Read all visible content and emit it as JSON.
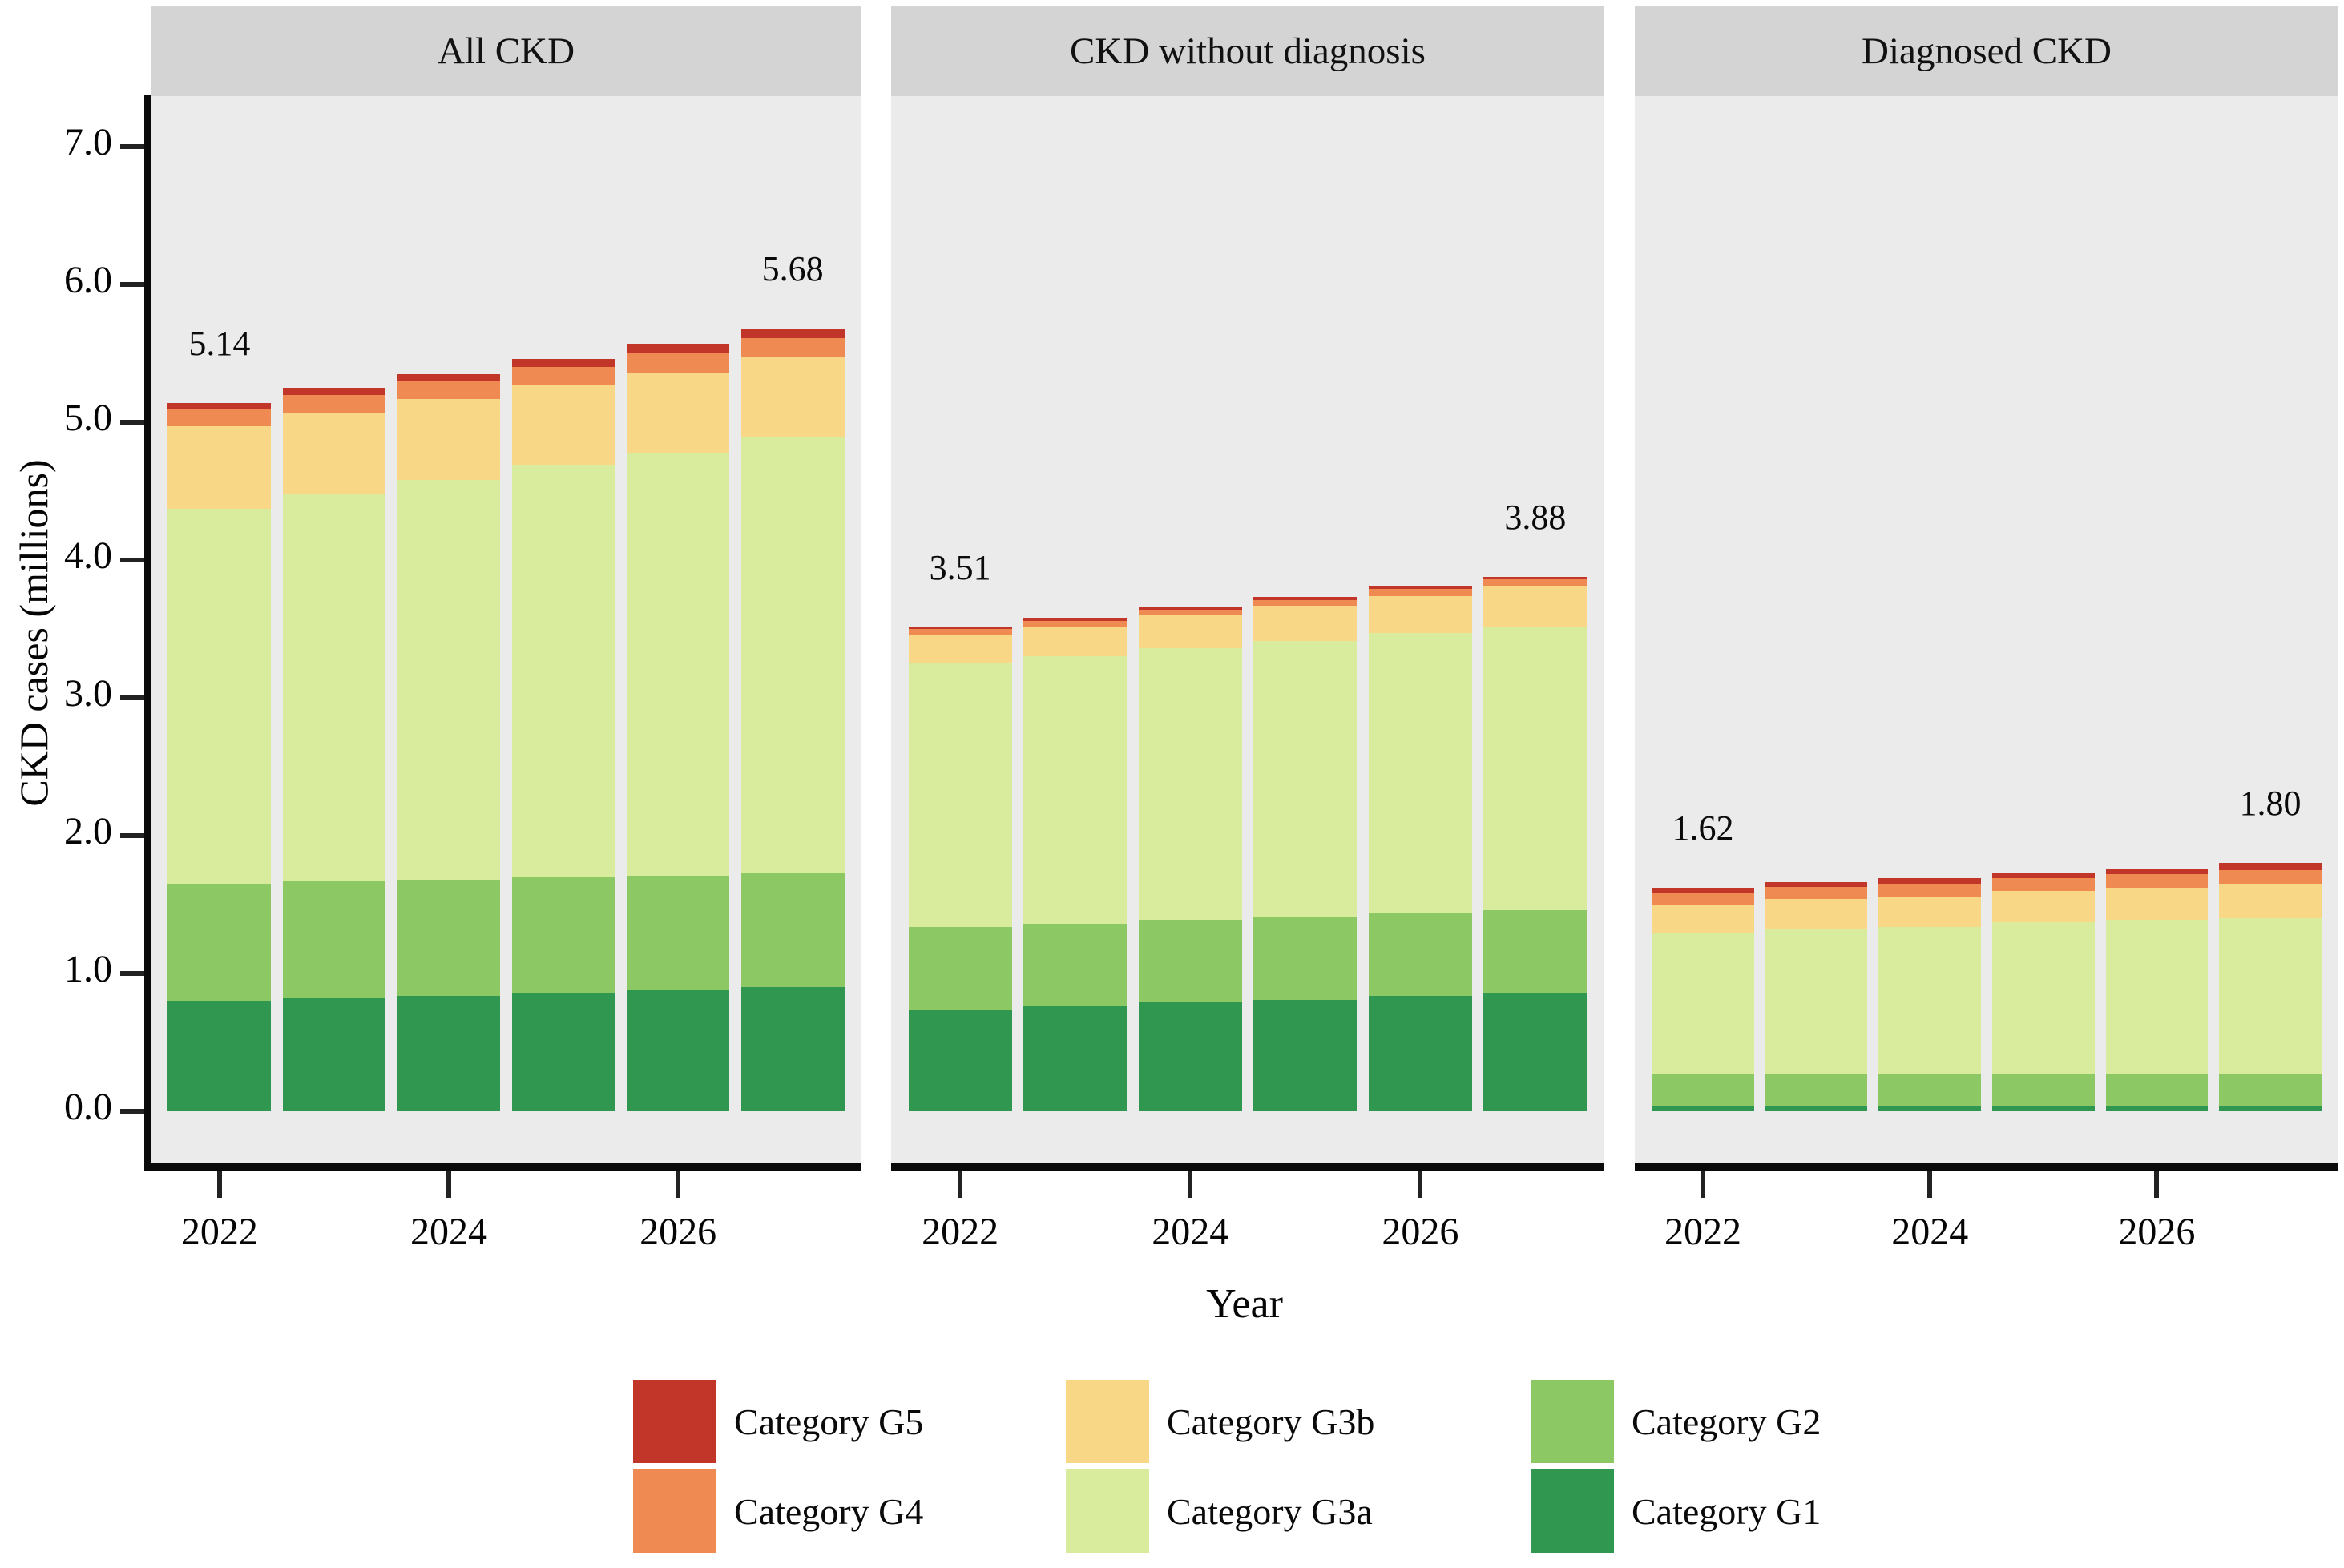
{
  "figure": {
    "y_axis": {
      "title": "CKD cases (millions)",
      "tick_labels": [
        "0.0",
        "1.0",
        "2.0",
        "3.0",
        "4.0",
        "5.0",
        "6.0",
        "7.0"
      ]
    },
    "x_axis": {
      "title": "Year",
      "tick_labels": [
        "2022",
        "2024",
        "2026"
      ]
    },
    "colors": {
      "panel_header_bg": "#d4d4d4",
      "plot_bg": "#ebebeb",
      "axis": "#0a0a0a"
    },
    "legend": {
      "columns": [
        [
          {
            "label": "Category G5",
            "color": "#c23529"
          },
          {
            "label": "Category G4",
            "color": "#ef8a52"
          }
        ],
        [
          {
            "label": "Category G3b",
            "color": "#f8d787"
          },
          {
            "label": "Category G3a",
            "color": "#d9ec9e"
          }
        ],
        [
          {
            "label": "Category G2",
            "color": "#8cc863"
          },
          {
            "label": "Category G1",
            "color": "#2f9750"
          }
        ]
      ]
    }
  },
  "chart_data": {
    "type": "bar",
    "stacked": true,
    "title": "",
    "xlabel": "Year",
    "ylabel": "CKD cases (millions)",
    "ylim": [
      0,
      7
    ],
    "grid": false,
    "x": [
      2022,
      2023,
      2024,
      2025,
      2026,
      2027
    ],
    "x_tick_years": [
      2022,
      2024,
      2026
    ],
    "stack_order_bottom_to_top": [
      "Category G1",
      "Category G2",
      "Category G3a",
      "Category G3b",
      "Category G4",
      "Category G5"
    ],
    "facets": [
      {
        "title": "All CKD",
        "totals": [
          5.14,
          5.25,
          5.35,
          5.46,
          5.57,
          5.68
        ],
        "annotations": [
          {
            "x_index": 0,
            "text": "5.14"
          },
          {
            "x_index": 5,
            "text": "5.68"
          }
        ],
        "series": [
          {
            "name": "Category G1",
            "color": "#2f9750",
            "values": [
              0.8,
              0.82,
              0.84,
              0.86,
              0.88,
              0.9
            ]
          },
          {
            "name": "Category G2",
            "color": "#8cc863",
            "values": [
              0.85,
              0.85,
              0.84,
              0.84,
              0.83,
              0.83
            ]
          },
          {
            "name": "Category G3a",
            "color": "#d9ec9e",
            "values": [
              2.72,
              2.81,
              2.9,
              2.99,
              3.07,
              3.16
            ]
          },
          {
            "name": "Category G3b",
            "color": "#f8d787",
            "values": [
              0.6,
              0.59,
              0.59,
              0.58,
              0.58,
              0.58
            ]
          },
          {
            "name": "Category G4",
            "color": "#ef8a52",
            "values": [
              0.13,
              0.13,
              0.13,
              0.13,
              0.14,
              0.14
            ]
          },
          {
            "name": "Category G5",
            "color": "#c23529",
            "values": [
              0.04,
              0.05,
              0.05,
              0.06,
              0.07,
              0.07
            ]
          }
        ]
      },
      {
        "title": "CKD without diagnosis",
        "totals": [
          3.51,
          3.58,
          3.66,
          3.73,
          3.81,
          3.88
        ],
        "annotations": [
          {
            "x_index": 0,
            "text": "3.51"
          },
          {
            "x_index": 5,
            "text": "3.88"
          }
        ],
        "series": [
          {
            "name": "Category G1",
            "color": "#2f9750",
            "values": [
              0.74,
              0.76,
              0.79,
              0.81,
              0.84,
              0.86
            ]
          },
          {
            "name": "Category G2",
            "color": "#8cc863",
            "values": [
              0.6,
              0.6,
              0.6,
              0.6,
              0.6,
              0.6
            ]
          },
          {
            "name": "Category G3a",
            "color": "#d9ec9e",
            "values": [
              1.91,
              1.94,
              1.97,
              2.0,
              2.03,
              2.05
            ]
          },
          {
            "name": "Category G3b",
            "color": "#f8d787",
            "values": [
              0.21,
              0.22,
              0.24,
              0.26,
              0.27,
              0.3
            ]
          },
          {
            "name": "Category G4",
            "color": "#ef8a52",
            "values": [
              0.04,
              0.04,
              0.04,
              0.04,
              0.05,
              0.05
            ]
          },
          {
            "name": "Category G5",
            "color": "#c23529",
            "values": [
              0.01,
              0.02,
              0.02,
              0.02,
              0.02,
              0.02
            ]
          }
        ]
      },
      {
        "title": "Diagnosed CKD",
        "totals": [
          1.62,
          1.66,
          1.69,
          1.73,
          1.76,
          1.8
        ],
        "annotations": [
          {
            "x_index": 0,
            "text": "1.62"
          },
          {
            "x_index": 5,
            "text": "1.80"
          }
        ],
        "series": [
          {
            "name": "Category G1",
            "color": "#2f9750",
            "values": [
              0.04,
              0.04,
              0.04,
              0.04,
              0.04,
              0.04
            ]
          },
          {
            "name": "Category G2",
            "color": "#8cc863",
            "values": [
              0.23,
              0.23,
              0.23,
              0.23,
              0.23,
              0.23
            ]
          },
          {
            "name": "Category G3a",
            "color": "#d9ec9e",
            "values": [
              1.02,
              1.05,
              1.07,
              1.1,
              1.12,
              1.13
            ]
          },
          {
            "name": "Category G3b",
            "color": "#f8d787",
            "values": [
              0.21,
              0.22,
              0.22,
              0.23,
              0.23,
              0.25
            ]
          },
          {
            "name": "Category G4",
            "color": "#ef8a52",
            "values": [
              0.09,
              0.09,
              0.09,
              0.09,
              0.1,
              0.1
            ]
          },
          {
            "name": "Category G5",
            "color": "#c23529",
            "values": [
              0.03,
              0.03,
              0.04,
              0.04,
              0.04,
              0.05
            ]
          }
        ]
      }
    ]
  }
}
